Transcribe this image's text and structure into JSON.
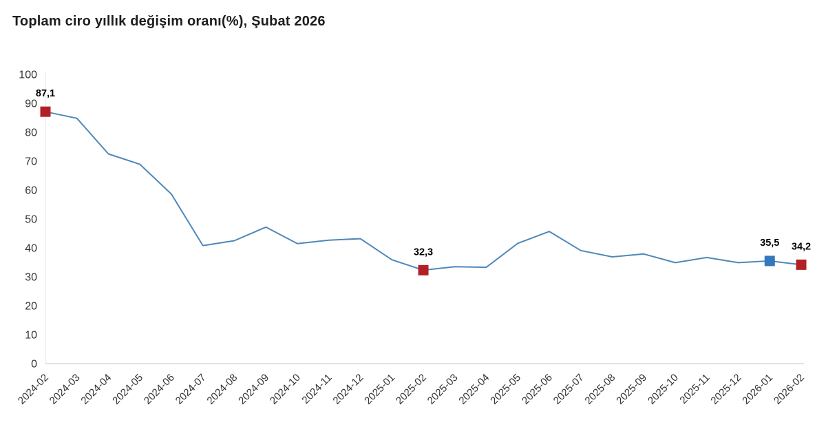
{
  "title": "Toplam ciro yıllık değişim oranı(%), Şubat 2026",
  "colors": {
    "background": "#ffffff",
    "title_text": "#1d1d1d",
    "line": "#4e87ba",
    "marker_red": "#b22025",
    "marker_blue": "#3478bd",
    "x_axis_line": "#d9d9d9",
    "y_axis_line": "#e6e6e6",
    "tick_label": "#333333",
    "data_label": "#000000"
  },
  "chart_data": {
    "type": "line",
    "title": "Toplam ciro yıllık değişim oranı(%), Şubat 2026",
    "categories": [
      "2024-02",
      "2024-03",
      "2024-04",
      "2024-05",
      "2024-06",
      "2024-07",
      "2024-08",
      "2024-09",
      "2024-10",
      "2024-11",
      "2024-12",
      "2025-01",
      "2025-02",
      "2025-03",
      "2025-04",
      "2025-05",
      "2025-06",
      "2025-07",
      "2025-08",
      "2025-09",
      "2025-10",
      "2025-11",
      "2025-12",
      "2026-01",
      "2026-02"
    ],
    "values": [
      87.1,
      84.8,
      72.5,
      68.9,
      58.6,
      40.8,
      42.5,
      47.2,
      41.5,
      42.7,
      43.2,
      35.9,
      32.3,
      33.5,
      33.3,
      41.6,
      45.7,
      39.1,
      36.9,
      37.9,
      34.9,
      36.7,
      34.9,
      35.5,
      34.2
    ],
    "ylim": [
      0,
      100
    ],
    "yticks": [
      0,
      10,
      20,
      30,
      40,
      50,
      60,
      70,
      80,
      90,
      100
    ],
    "x_tick_rotation": -45,
    "grid": "off",
    "legend": "none",
    "xlabel": "",
    "ylabel": "",
    "labeled_points": [
      {
        "category": "2024-02",
        "label": "87,1",
        "marker_color": "red"
      },
      {
        "category": "2025-02",
        "label": "32,3",
        "marker_color": "red"
      },
      {
        "category": "2026-01",
        "label": "35,5",
        "marker_color": "blue"
      },
      {
        "category": "2026-02",
        "label": "34,2",
        "marker_color": "red"
      }
    ]
  }
}
